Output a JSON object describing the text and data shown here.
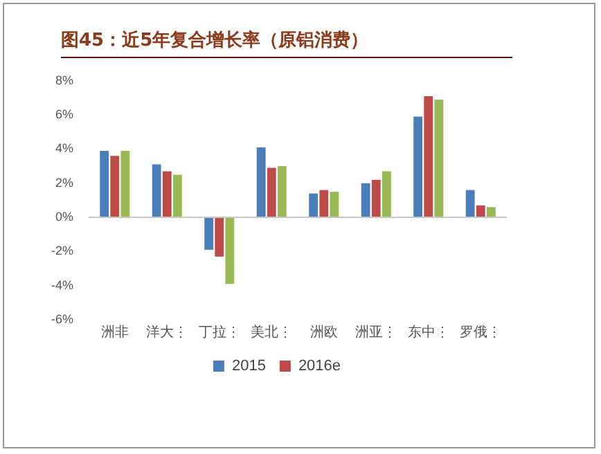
{
  "chart_data": {
    "type": "bar",
    "title": "图45：近5年复合增长率（原铝消费）",
    "categories": [
      "洲非",
      "洋大⋮",
      "丁拉⋮",
      "美北⋮",
      "洲欧",
      "洲亚⋮",
      "东中⋮",
      "罗俄⋮"
    ],
    "series": [
      {
        "name": "2015",
        "color": "#4a7ebb",
        "values": [
          3.9,
          3.1,
          -1.9,
          4.1,
          1.4,
          2.0,
          5.9,
          1.6
        ]
      },
      {
        "name": "2016e",
        "color": "#be4b48",
        "values": [
          3.6,
          2.7,
          -2.3,
          2.9,
          1.6,
          2.2,
          7.1,
          0.7
        ]
      },
      {
        "color": "#98b954",
        "values": [
          3.9,
          2.5,
          -3.9,
          3.0,
          1.5,
          2.7,
          6.9,
          0.6
        ]
      }
    ],
    "ylim": [
      -6,
      8
    ],
    "yticks": [
      {
        "value": -6,
        "label": "-6%"
      },
      {
        "value": -4,
        "label": "-4%"
      },
      {
        "value": -2,
        "label": "-2%"
      },
      {
        "value": 0,
        "label": "0%"
      },
      {
        "value": 2,
        "label": "2%"
      },
      {
        "value": 4,
        "label": "4%"
      },
      {
        "value": 6,
        "label": "6%"
      },
      {
        "value": 8,
        "label": "8%"
      }
    ],
    "legend": "bottom"
  }
}
